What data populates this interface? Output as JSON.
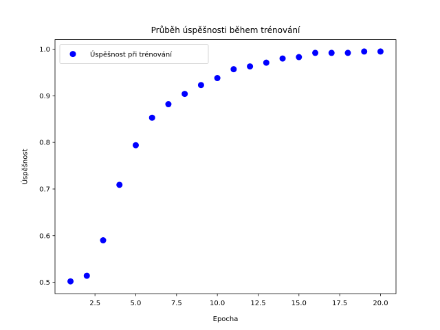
{
  "chart_data": {
    "type": "scatter",
    "title": "Průběh úspěšnosti během trénování",
    "xlabel": "Epocha",
    "ylabel": "Úspěšnost",
    "xlim": [
      0.05,
      20.95
    ],
    "ylim": [
      0.4755,
      1.0205
    ],
    "x_ticks": [
      2.5,
      5.0,
      7.5,
      10.0,
      12.5,
      15.0,
      17.5,
      20.0
    ],
    "x_tick_labels": [
      "2.5",
      "5.0",
      "7.5",
      "10.0",
      "12.5",
      "15.0",
      "17.5",
      "20.0"
    ],
    "y_ticks": [
      0.5,
      0.6,
      0.7,
      0.8,
      0.9,
      1.0
    ],
    "y_tick_labels": [
      "0.5",
      "0.6",
      "0.7",
      "0.8",
      "0.9",
      "1.0"
    ],
    "grid": false,
    "legend_position": "upper-left",
    "series": [
      {
        "name": "Úspěšnost při trénování",
        "color": "#0000ff",
        "marker": "circle",
        "x": [
          1,
          2,
          3,
          4,
          5,
          6,
          7,
          8,
          9,
          10,
          11,
          12,
          13,
          14,
          15,
          16,
          17,
          18,
          19,
          20
        ],
        "y": [
          0.502,
          0.514,
          0.59,
          0.709,
          0.794,
          0.853,
          0.882,
          0.904,
          0.923,
          0.938,
          0.957,
          0.963,
          0.971,
          0.98,
          0.983,
          0.992,
          0.992,
          0.992,
          0.995,
          0.995
        ]
      }
    ]
  }
}
